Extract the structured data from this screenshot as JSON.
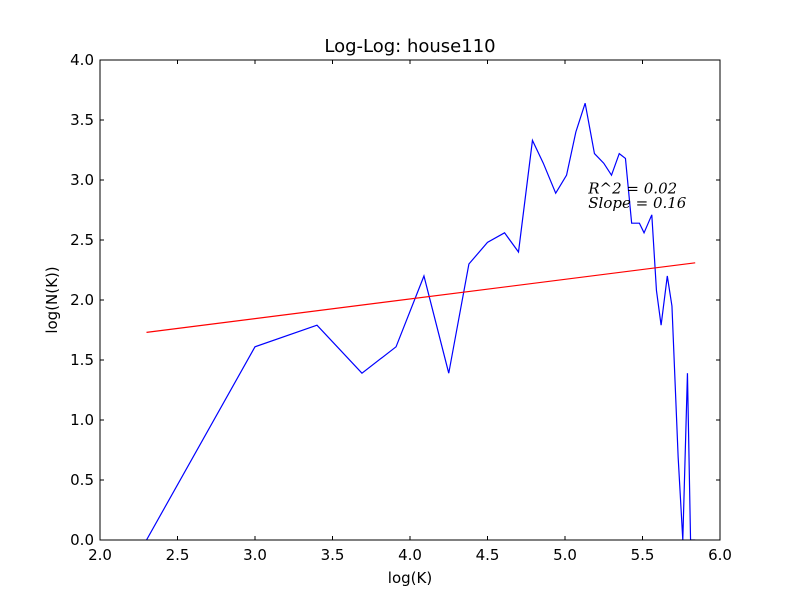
{
  "chart_data": {
    "type": "line",
    "title": "Log-Log: house110",
    "xlabel": "log(K)",
    "ylabel": "log(N(K))",
    "xlim": [
      2.0,
      6.0
    ],
    "ylim": [
      0.0,
      4.0
    ],
    "xticks": [
      "2.0",
      "2.5",
      "3.0",
      "3.5",
      "4.0",
      "4.5",
      "5.0",
      "5.5",
      "6.0"
    ],
    "yticks": [
      "0.0",
      "0.5",
      "1.0",
      "1.5",
      "2.0",
      "2.5",
      "3.0",
      "3.5",
      "4.0"
    ],
    "grid": false,
    "legend": "none",
    "series": [
      {
        "color": "#0000ff",
        "x": [
          2.3,
          3.0,
          3.4,
          3.69,
          3.91,
          4.09,
          4.25,
          4.38,
          4.5,
          4.61,
          4.7,
          4.79,
          4.86,
          4.94,
          5.01,
          5.07,
          5.13,
          5.19,
          5.25,
          5.3,
          5.35,
          5.39,
          5.43,
          5.48,
          5.51,
          5.56,
          5.59,
          5.62,
          5.66,
          5.69,
          5.73,
          5.76,
          5.79,
          5.81,
          5.82,
          5.84
        ],
        "y": [
          0.0,
          1.61,
          1.79,
          1.39,
          1.61,
          2.2,
          1.39,
          2.3,
          2.48,
          2.56,
          2.4,
          3.33,
          3.14,
          2.89,
          3.04,
          3.4,
          3.64,
          3.22,
          3.14,
          3.04,
          3.22,
          3.18,
          2.64,
          2.64,
          2.56,
          2.71,
          2.08,
          1.79,
          2.2,
          1.95,
          0.69,
          0.0,
          1.39,
          0.0,
          0.0,
          0.0
        ]
      },
      {
        "color": "#ff0000",
        "x": [
          2.3,
          5.84
        ],
        "y": [
          1.73,
          2.31
        ]
      }
    ],
    "annotations": [
      {
        "text": "R^2 = 0.02",
        "x": 5.15,
        "y": 2.93
      },
      {
        "text": "Slope = 0.16",
        "x": 5.15,
        "y": 2.81
      }
    ]
  }
}
